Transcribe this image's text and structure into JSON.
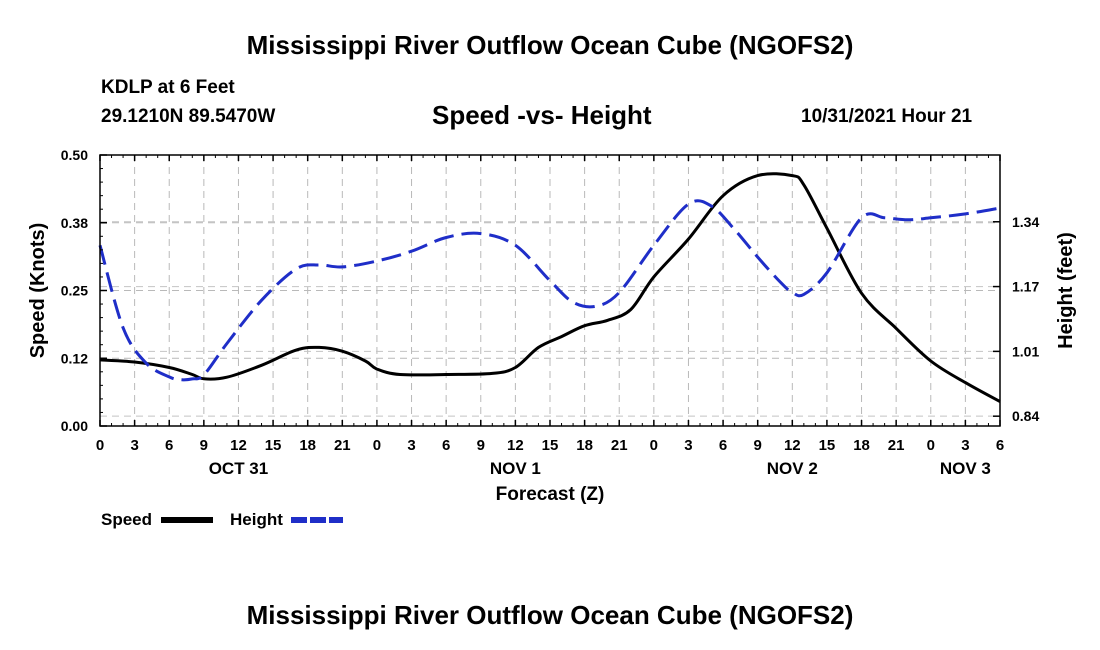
{
  "header": {
    "title": "Mississippi River Outflow Ocean Cube (NGOFS2)",
    "station": "KDLP at 6 Feet",
    "coords": "29.1210N  89.5470W",
    "subtitle": "Speed -vs- Height",
    "datetime": "10/31/2021 Hour 21"
  },
  "footer": {
    "title": "Mississippi River Outflow Ocean Cube (NGOFS2)"
  },
  "chart_data": {
    "type": "line",
    "title": "Speed -vs- Height",
    "xlabel": "Forecast (Z)",
    "ylabel": "Speed (Knots)",
    "y2label": "Height (feet)",
    "x_hours": [
      0,
      3,
      6,
      9,
      12,
      15,
      18,
      21,
      24,
      27,
      30,
      33,
      36,
      39,
      42,
      45,
      48,
      51,
      54,
      57,
      60,
      63,
      66,
      69,
      72,
      75,
      78
    ],
    "x_tick_labels": [
      "0",
      "3",
      "6",
      "9",
      "12",
      "15",
      "18",
      "21",
      "0",
      "3",
      "6",
      "9",
      "12",
      "15",
      "18",
      "21",
      "0",
      "3",
      "6",
      "9",
      "12",
      "15",
      "18",
      "21",
      "0",
      "3",
      "6"
    ],
    "day_labels": [
      {
        "label": "OCT 31",
        "hour": 12
      },
      {
        "label": "NOV 1",
        "hour": 36
      },
      {
        "label": "NOV 2",
        "hour": 60
      },
      {
        "label": "NOV 3",
        "hour": 75
      }
    ],
    "left_axis": {
      "range": [
        0,
        0.5
      ],
      "ticks": [
        "0.00",
        "0.12",
        "0.25",
        "0.38",
        "0.50"
      ],
      "tick_values": [
        0,
        0.125,
        0.25,
        0.375,
        0.5
      ]
    },
    "right_axis": {
      "range": [
        0.82,
        1.51
      ],
      "ticks": [
        "0.84",
        "1.01",
        "1.17",
        "1.34"
      ],
      "tick_values": [
        0.845,
        1.01,
        1.175,
        1.34
      ]
    },
    "grid": true,
    "series": [
      {
        "name": "Speed",
        "axis": "left",
        "color": "#000000",
        "dashed": false,
        "x": [
          0,
          3,
          6,
          8,
          9,
          11,
          14,
          17,
          19,
          21,
          23,
          24,
          26,
          30,
          34,
          36,
          38,
          40,
          42,
          44,
          46,
          48,
          51,
          54,
          57,
          60,
          61,
          63,
          66,
          69,
          72,
          75,
          78
        ],
        "values": [
          0.122,
          0.118,
          0.108,
          0.095,
          0.087,
          0.09,
          0.112,
          0.14,
          0.145,
          0.138,
          0.12,
          0.105,
          0.095,
          0.095,
          0.097,
          0.108,
          0.145,
          0.165,
          0.185,
          0.195,
          0.215,
          0.275,
          0.345,
          0.425,
          0.462,
          0.462,
          0.445,
          0.365,
          0.245,
          0.18,
          0.12,
          0.08,
          0.045
        ]
      },
      {
        "name": "Height",
        "axis": "right",
        "color": "#1f2ec8",
        "dashed": true,
        "x": [
          0,
          2,
          4,
          6,
          7,
          8,
          9,
          11,
          14,
          17,
          19,
          21,
          24,
          27,
          30,
          33,
          36,
          39,
          41,
          43,
          45,
          48,
          51,
          53,
          55,
          57,
          59,
          60,
          61,
          63,
          66,
          68,
          70,
          72,
          75,
          78
        ],
        "values": [
          1.28,
          1.07,
          0.98,
          0.945,
          0.938,
          0.94,
          0.95,
          1.03,
          1.14,
          1.22,
          1.23,
          1.225,
          1.24,
          1.265,
          1.3,
          1.31,
          1.28,
          1.19,
          1.135,
          1.125,
          1.16,
          1.28,
          1.385,
          1.38,
          1.32,
          1.25,
          1.185,
          1.16,
          1.155,
          1.21,
          1.35,
          1.35,
          1.345,
          1.35,
          1.36,
          1.375
        ]
      }
    ],
    "legend": {
      "placement": "bottom-left",
      "items": [
        {
          "label": "Speed",
          "color": "#000000"
        },
        {
          "label": "Height",
          "color": "#1f2ec8"
        }
      ]
    }
  }
}
